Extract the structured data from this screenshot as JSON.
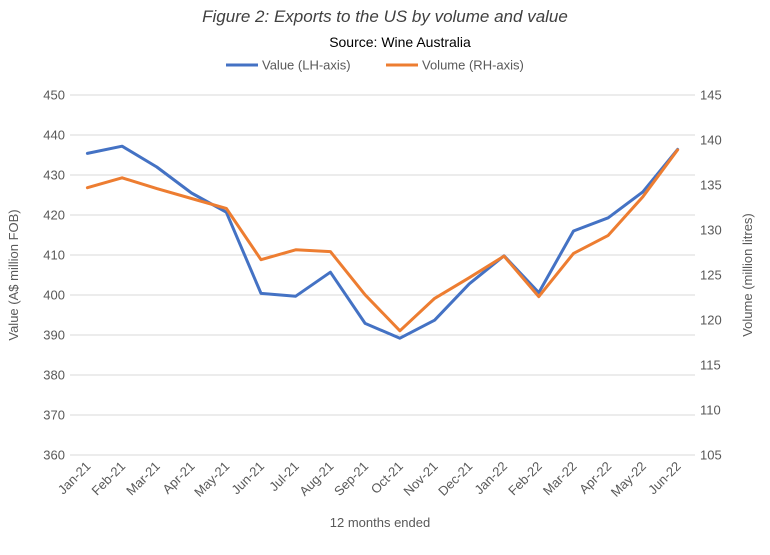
{
  "chart_data": {
    "type": "line",
    "title": "Figure 2: Exports to the US by volume and value",
    "subtitle": "Source: Wine Australia",
    "xlabel": "12 months ended",
    "ylabel_left": "Value (A$ million FOB)",
    "ylabel_right": "Volume (million litres)",
    "categories": [
      "Jan-21",
      "Feb-21",
      "Mar-21",
      "Apr-21",
      "May-21",
      "Jun-21",
      "Jul-21",
      "Aug-21",
      "Sep-21",
      "Oct-21",
      "Nov-21",
      "Dec-21",
      "Jan-22",
      "Feb-22",
      "Mar-22",
      "Apr-22",
      "May-22",
      "Jun-22"
    ],
    "ylim_left": [
      360,
      450
    ],
    "ylim_right": [
      105,
      145
    ],
    "yticks_left": [
      "360",
      "370",
      "380",
      "390",
      "400",
      "410",
      "420",
      "430",
      "440",
      "450"
    ],
    "yticks_right": [
      "105",
      "110",
      "115",
      "120",
      "125",
      "130",
      "135",
      "140",
      "145"
    ],
    "grid": true,
    "legend_position": "top",
    "series": [
      {
        "name": "Value (LH-axis)",
        "axis": "left",
        "color": "#4472C4",
        "values": [
          435.4,
          437.2,
          432.0,
          425.5,
          420.7,
          400.4,
          399.7,
          405.7,
          392.9,
          389.2,
          393.7,
          402.8,
          409.8,
          400.6,
          416.0,
          419.3,
          425.8,
          436.4
        ]
      },
      {
        "name": "Volume (RH-axis)",
        "axis": "right",
        "color": "#ED7D31",
        "values": [
          134.7,
          135.8,
          134.6,
          133.5,
          132.4,
          126.7,
          127.8,
          127.6,
          122.8,
          118.8,
          122.4,
          124.7,
          127.1,
          122.6,
          127.4,
          129.4,
          133.7,
          138.9
        ]
      }
    ]
  }
}
